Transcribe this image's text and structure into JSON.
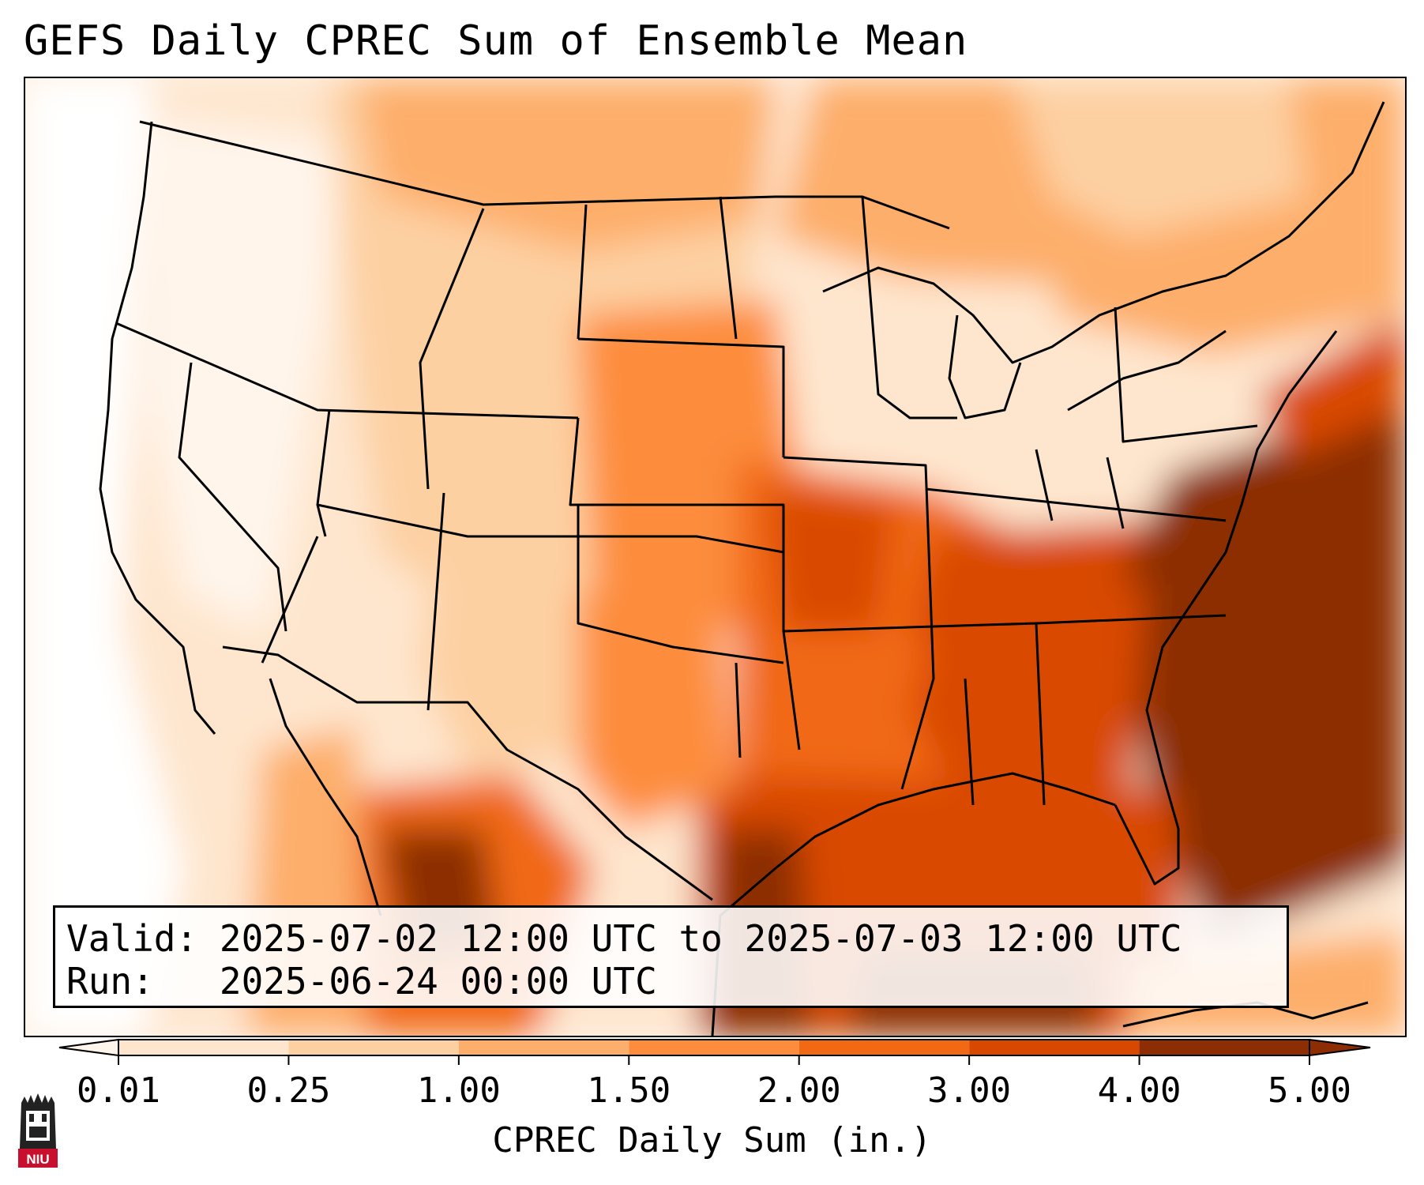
{
  "title": "GEFS Daily CPREC Sum of Ensemble Mean",
  "info": {
    "valid_label": "Valid:",
    "valid_value": "2025-07-02 12:00 UTC to 2025-07-03 12:00 UTC",
    "run_label": "Run:",
    "run_value": "2025-06-24 00:00 UTC"
  },
  "colorbar": {
    "label": "CPREC Daily Sum (in.)",
    "ticks": [
      "0.01",
      "0.25",
      "1.00",
      "1.50",
      "2.00",
      "3.00",
      "4.00",
      "5.00"
    ],
    "colors": [
      "#fff5eb",
      "#fee6ce",
      "#fdd0a2",
      "#fdae6b",
      "#fd8d3c",
      "#f16913",
      "#d94801",
      "#8c2d04"
    ]
  },
  "logo": {
    "text": "NIU",
    "colors": {
      "red": "#c8102e",
      "dark": "#222222"
    }
  }
}
